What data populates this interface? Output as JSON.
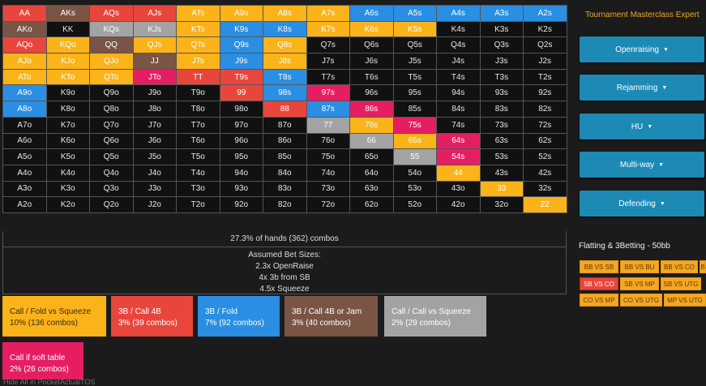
{
  "grid": {
    "rows": [
      [
        [
          "AA",
          "R"
        ],
        [
          "AKs",
          "N"
        ],
        [
          "AQs",
          "R"
        ],
        [
          "AJs",
          "R"
        ],
        [
          "ATs",
          "Y"
        ],
        [
          "A9s",
          "Y"
        ],
        [
          "A8s",
          "Y"
        ],
        [
          "A7s",
          "Y"
        ],
        [
          "A6s",
          "B"
        ],
        [
          "A5s",
          "B"
        ],
        [
          "A4s",
          "B"
        ],
        [
          "A3s",
          "B"
        ],
        [
          "A2s",
          "B"
        ]
      ],
      [
        [
          "AKo",
          "N"
        ],
        [
          "KK",
          "K"
        ],
        [
          "KQs",
          "G"
        ],
        [
          "KJs",
          "G"
        ],
        [
          "KTs",
          "Y"
        ],
        [
          "K9s",
          "B"
        ],
        [
          "K8s",
          "B"
        ],
        [
          "K7s",
          "Y"
        ],
        [
          "K6s",
          "Y"
        ],
        [
          "K5s",
          "Y"
        ],
        [
          "K4s",
          "K"
        ],
        [
          "K3s",
          "K"
        ],
        [
          "K2s",
          "K"
        ]
      ],
      [
        [
          "AQo",
          "R"
        ],
        [
          "KQo",
          "Y"
        ],
        [
          "QQ",
          "N"
        ],
        [
          "QJs",
          "Y"
        ],
        [
          "QTs",
          "Y"
        ],
        [
          "Q9s",
          "B"
        ],
        [
          "Q8s",
          "Y"
        ],
        [
          "Q7s",
          "K"
        ],
        [
          "Q6s",
          "K"
        ],
        [
          "Q5s",
          "K"
        ],
        [
          "Q4s",
          "K"
        ],
        [
          "Q3s",
          "K"
        ],
        [
          "Q2s",
          "K"
        ]
      ],
      [
        [
          "AJo",
          "Y"
        ],
        [
          "KJo",
          "Y"
        ],
        [
          "QJo",
          "Y"
        ],
        [
          "JJ",
          "N"
        ],
        [
          "JTs",
          "Y"
        ],
        [
          "J9s",
          "B"
        ],
        [
          "J8s",
          "Y"
        ],
        [
          "J7s",
          "K"
        ],
        [
          "J6s",
          "K"
        ],
        [
          "J5s",
          "K"
        ],
        [
          "J4s",
          "K"
        ],
        [
          "J3s",
          "K"
        ],
        [
          "J2s",
          "K"
        ]
      ],
      [
        [
          "ATo",
          "Y"
        ],
        [
          "KTo",
          "Y"
        ],
        [
          "QTo",
          "Y"
        ],
        [
          "JTo",
          "P"
        ],
        [
          "TT",
          "R"
        ],
        [
          "T9s",
          "R"
        ],
        [
          "T8s",
          "B"
        ],
        [
          "T7s",
          "K"
        ],
        [
          "T6s",
          "K"
        ],
        [
          "T5s",
          "K"
        ],
        [
          "T4s",
          "K"
        ],
        [
          "T3s",
          "K"
        ],
        [
          "T2s",
          "K"
        ]
      ],
      [
        [
          "A9o",
          "B"
        ],
        [
          "K9o",
          "K"
        ],
        [
          "Q9o",
          "K"
        ],
        [
          "J9o",
          "K"
        ],
        [
          "T9o",
          "K"
        ],
        [
          "99",
          "R"
        ],
        [
          "98s",
          "B"
        ],
        [
          "97s",
          "P"
        ],
        [
          "96s",
          "K"
        ],
        [
          "95s",
          "K"
        ],
        [
          "94s",
          "K"
        ],
        [
          "93s",
          "K"
        ],
        [
          "92s",
          "K"
        ]
      ],
      [
        [
          "A8o",
          "B"
        ],
        [
          "K8o",
          "K"
        ],
        [
          "Q8o",
          "K"
        ],
        [
          "J8o",
          "K"
        ],
        [
          "T8o",
          "K"
        ],
        [
          "98o",
          "K"
        ],
        [
          "88",
          "R"
        ],
        [
          "87s",
          "B"
        ],
        [
          "86s",
          "P"
        ],
        [
          "85s",
          "K"
        ],
        [
          "84s",
          "K"
        ],
        [
          "83s",
          "K"
        ],
        [
          "82s",
          "K"
        ]
      ],
      [
        [
          "A7o",
          "K"
        ],
        [
          "K7o",
          "K"
        ],
        [
          "Q7o",
          "K"
        ],
        [
          "J7o",
          "K"
        ],
        [
          "T7o",
          "K"
        ],
        [
          "97o",
          "K"
        ],
        [
          "87o",
          "K"
        ],
        [
          "77",
          "G"
        ],
        [
          "76s",
          "Y"
        ],
        [
          "75s",
          "P"
        ],
        [
          "74s",
          "K"
        ],
        [
          "73s",
          "K"
        ],
        [
          "72s",
          "K"
        ]
      ],
      [
        [
          "A6o",
          "K"
        ],
        [
          "K6o",
          "K"
        ],
        [
          "Q6o",
          "K"
        ],
        [
          "J6o",
          "K"
        ],
        [
          "T6o",
          "K"
        ],
        [
          "96o",
          "K"
        ],
        [
          "86o",
          "K"
        ],
        [
          "76o",
          "K"
        ],
        [
          "66",
          "G"
        ],
        [
          "65s",
          "Y"
        ],
        [
          "64s",
          "P"
        ],
        [
          "63s",
          "K"
        ],
        [
          "62s",
          "K"
        ]
      ],
      [
        [
          "A5o",
          "K"
        ],
        [
          "K5o",
          "K"
        ],
        [
          "Q5o",
          "K"
        ],
        [
          "J5o",
          "K"
        ],
        [
          "T5o",
          "K"
        ],
        [
          "95o",
          "K"
        ],
        [
          "85o",
          "K"
        ],
        [
          "75o",
          "K"
        ],
        [
          "65o",
          "K"
        ],
        [
          "55",
          "G"
        ],
        [
          "54s",
          "P"
        ],
        [
          "53s",
          "K"
        ],
        [
          "52s",
          "K"
        ]
      ],
      [
        [
          "A4o",
          "K"
        ],
        [
          "K4o",
          "K"
        ],
        [
          "Q4o",
          "K"
        ],
        [
          "J4o",
          "K"
        ],
        [
          "T4o",
          "K"
        ],
        [
          "94o",
          "K"
        ],
        [
          "84o",
          "K"
        ],
        [
          "74o",
          "K"
        ],
        [
          "64o",
          "K"
        ],
        [
          "54o",
          "K"
        ],
        [
          "44",
          "Y"
        ],
        [
          "43s",
          "K"
        ],
        [
          "42s",
          "K"
        ]
      ],
      [
        [
          "A3o",
          "K"
        ],
        [
          "K3o",
          "K"
        ],
        [
          "Q3o",
          "K"
        ],
        [
          "J3o",
          "K"
        ],
        [
          "T3o",
          "K"
        ],
        [
          "93o",
          "K"
        ],
        [
          "83o",
          "K"
        ],
        [
          "73o",
          "K"
        ],
        [
          "63o",
          "K"
        ],
        [
          "53o",
          "K"
        ],
        [
          "43o",
          "K"
        ],
        [
          "33",
          "Y"
        ],
        [
          "32s",
          "K"
        ]
      ],
      [
        [
          "A2o",
          "K"
        ],
        [
          "K2o",
          "K"
        ],
        [
          "Q2o",
          "K"
        ],
        [
          "J2o",
          "K"
        ],
        [
          "T2o",
          "K"
        ],
        [
          "92o",
          "K"
        ],
        [
          "82o",
          "K"
        ],
        [
          "72o",
          "K"
        ],
        [
          "62o",
          "K"
        ],
        [
          "52o",
          "K"
        ],
        [
          "42o",
          "K"
        ],
        [
          "32o",
          "K"
        ],
        [
          "22",
          "Y"
        ]
      ]
    ]
  },
  "summary": {
    "text": "27.3% of hands (362) combos"
  },
  "bet_sizes": {
    "title": "Assumed Bet Sizes:",
    "lines": [
      "2.3x OpenRaise",
      "4x 3b from SB",
      "4.5x Squeeze"
    ]
  },
  "legend": [
    {
      "name": "Call / Fold vs Squeeze",
      "stat": "10% (136 combos)",
      "color": "#fbb31a"
    },
    {
      "name": "3B / Call 4B",
      "stat": "3% (39 combos)",
      "color": "#e8463c"
    },
    {
      "name": "3B / Fold",
      "stat": "7% (92 combos)",
      "color": "#2a8ee3"
    },
    {
      "name": "3B / Call 4B or Jam",
      "stat": "3% (40 combos)",
      "color": "#7a5546"
    },
    {
      "name": "Call / Call vs Squeeze",
      "stat": "2% (29 combos)",
      "color": "#a3a3a3"
    },
    {
      "name": "Call if soft table",
      "stat": "2% (26 combos)",
      "color": "#e51e63"
    }
  ],
  "sidebar": {
    "title": "Tournament Masterclass Expert",
    "buttons": [
      "Openraising",
      "Rejamming",
      "HU",
      "Multi-way",
      "Defending"
    ],
    "caret": "▼",
    "flat_title": "Flatting & 3Betting - 50bb",
    "pill_rows": [
      [
        "BB VS SB",
        "BB VS BU",
        "BB VS CO",
        "B"
      ],
      [
        "SB VS CO",
        "SB VS MP",
        "SB VS UTG"
      ],
      [
        "CO VS MP",
        "CO VS UTG",
        "MP VS UTG"
      ]
    ],
    "active_pill": "SB VS CO"
  },
  "footer_cutoff": "Hide All in PocketActualTOS"
}
